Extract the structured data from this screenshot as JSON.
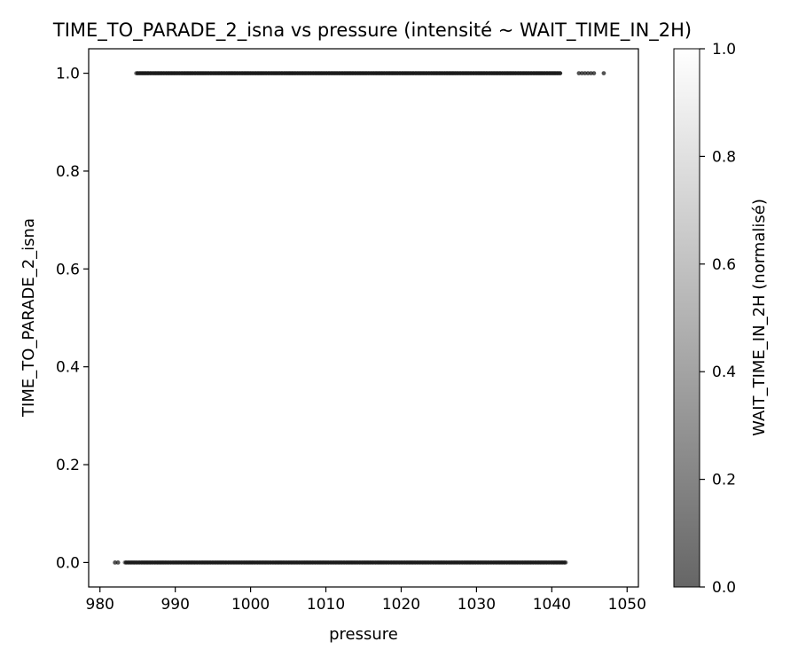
{
  "chart_data": {
    "type": "scatter",
    "title": "TIME_TO_PARADE_2_isna vs pressure (intensité ~ WAIT_TIME_IN_2H)",
    "xlabel": "pressure",
    "ylabel": "TIME_TO_PARADE_2_isna",
    "xlim": [
      978.5,
      1051.5
    ],
    "ylim": [
      -0.05,
      1.05
    ],
    "xticks": [
      "980",
      "990",
      "1000",
      "1010",
      "1020",
      "1030",
      "1040",
      "1050"
    ],
    "yticks": [
      "0.0",
      "0.2",
      "0.4",
      "0.6",
      "0.8",
      "1.0"
    ],
    "grid": false,
    "colorbar": {
      "label": "WAIT_TIME_IN_2H (normalisé)",
      "range": [
        0.0,
        1.0
      ],
      "ticks": [
        "0.0",
        "0.2",
        "0.4",
        "0.6",
        "0.8",
        "1.0"
      ],
      "color_low": "#666666",
      "color_high": "#ffffff"
    },
    "point_color": "#1a1a1a",
    "series": [
      {
        "y": 1.0,
        "x_range": [
          984.8,
          1041.2
        ],
        "outliers_x": [
          1043.6,
          1044.0,
          1044.4,
          1044.8,
          1045.2,
          1045.6,
          1046.9
        ]
      },
      {
        "y": 0.0,
        "x_range": [
          983.3,
          1042.0
        ],
        "outliers_x": [
          982.0,
          982.4
        ]
      }
    ]
  }
}
